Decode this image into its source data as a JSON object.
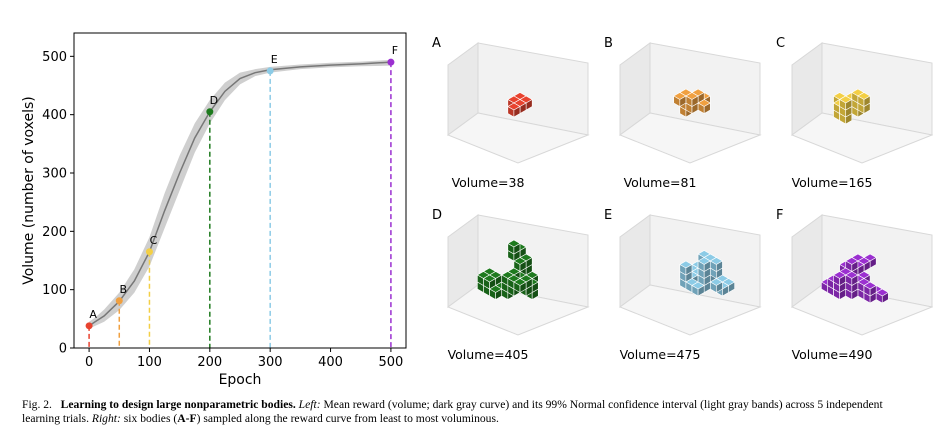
{
  "chart_data": {
    "type": "line",
    "xlabel": "Epoch",
    "ylabel": "Volume (number of voxels)",
    "x": [
      0,
      10,
      25,
      50,
      75,
      100,
      125,
      150,
      175,
      200,
      225,
      250,
      275,
      300,
      350,
      400,
      450,
      500
    ],
    "values": [
      38,
      45,
      55,
      80,
      115,
      165,
      235,
      300,
      360,
      405,
      440,
      462,
      472,
      477,
      482,
      485,
      487,
      490
    ],
    "band_lower": [
      33,
      38,
      45,
      65,
      95,
      140,
      205,
      270,
      335,
      385,
      425,
      452,
      466,
      472,
      478,
      481,
      483,
      484
    ],
    "band_upper": [
      45,
      52,
      66,
      95,
      135,
      190,
      265,
      330,
      385,
      425,
      455,
      472,
      478,
      482,
      486,
      489,
      491,
      494
    ],
    "color": "#777777",
    "band_color": "#cfcfcf",
    "points": {
      "labels": [
        "A",
        "B",
        "C",
        "D",
        "E",
        "F"
      ],
      "x": [
        0,
        50,
        100,
        200,
        300,
        500
      ],
      "values": [
        38,
        81,
        165,
        405,
        475,
        490
      ],
      "colors": [
        "#e8432f",
        "#f0a040",
        "#f3cf45",
        "#1e7a1e",
        "#8ccbe6",
        "#9b30d0"
      ]
    },
    "xlim": [
      -25,
      525
    ],
    "ylim": [
      0,
      540
    ],
    "xticks": [
      0,
      100,
      200,
      300,
      400,
      500
    ],
    "yticks": [
      0,
      100,
      200,
      300,
      400,
      500
    ]
  },
  "panels": [
    {
      "label": "A",
      "caption": "Volume=38"
    },
    {
      "label": "B",
      "caption": "Volume=81"
    },
    {
      "label": "C",
      "caption": "Volume=165"
    },
    {
      "label": "D",
      "caption": "Volume=405"
    },
    {
      "label": "E",
      "caption": "Volume=475"
    },
    {
      "label": "F",
      "caption": "Volume=490"
    }
  ],
  "caption": {
    "label": "Fig. 2.",
    "title": "Learning to design large nonparametric bodies.",
    "left_label": "Left:",
    "left_text": "Mean reward (volume; dark gray curve) and its 99% Normal confidence interval (light gray bands) across 5 independent learning trials.",
    "right_label": "Right:",
    "right_text_1": "six bodies (",
    "right_bold": "A-F",
    "right_text_2": ") sampled along the reward curve from least to most voluminous."
  }
}
